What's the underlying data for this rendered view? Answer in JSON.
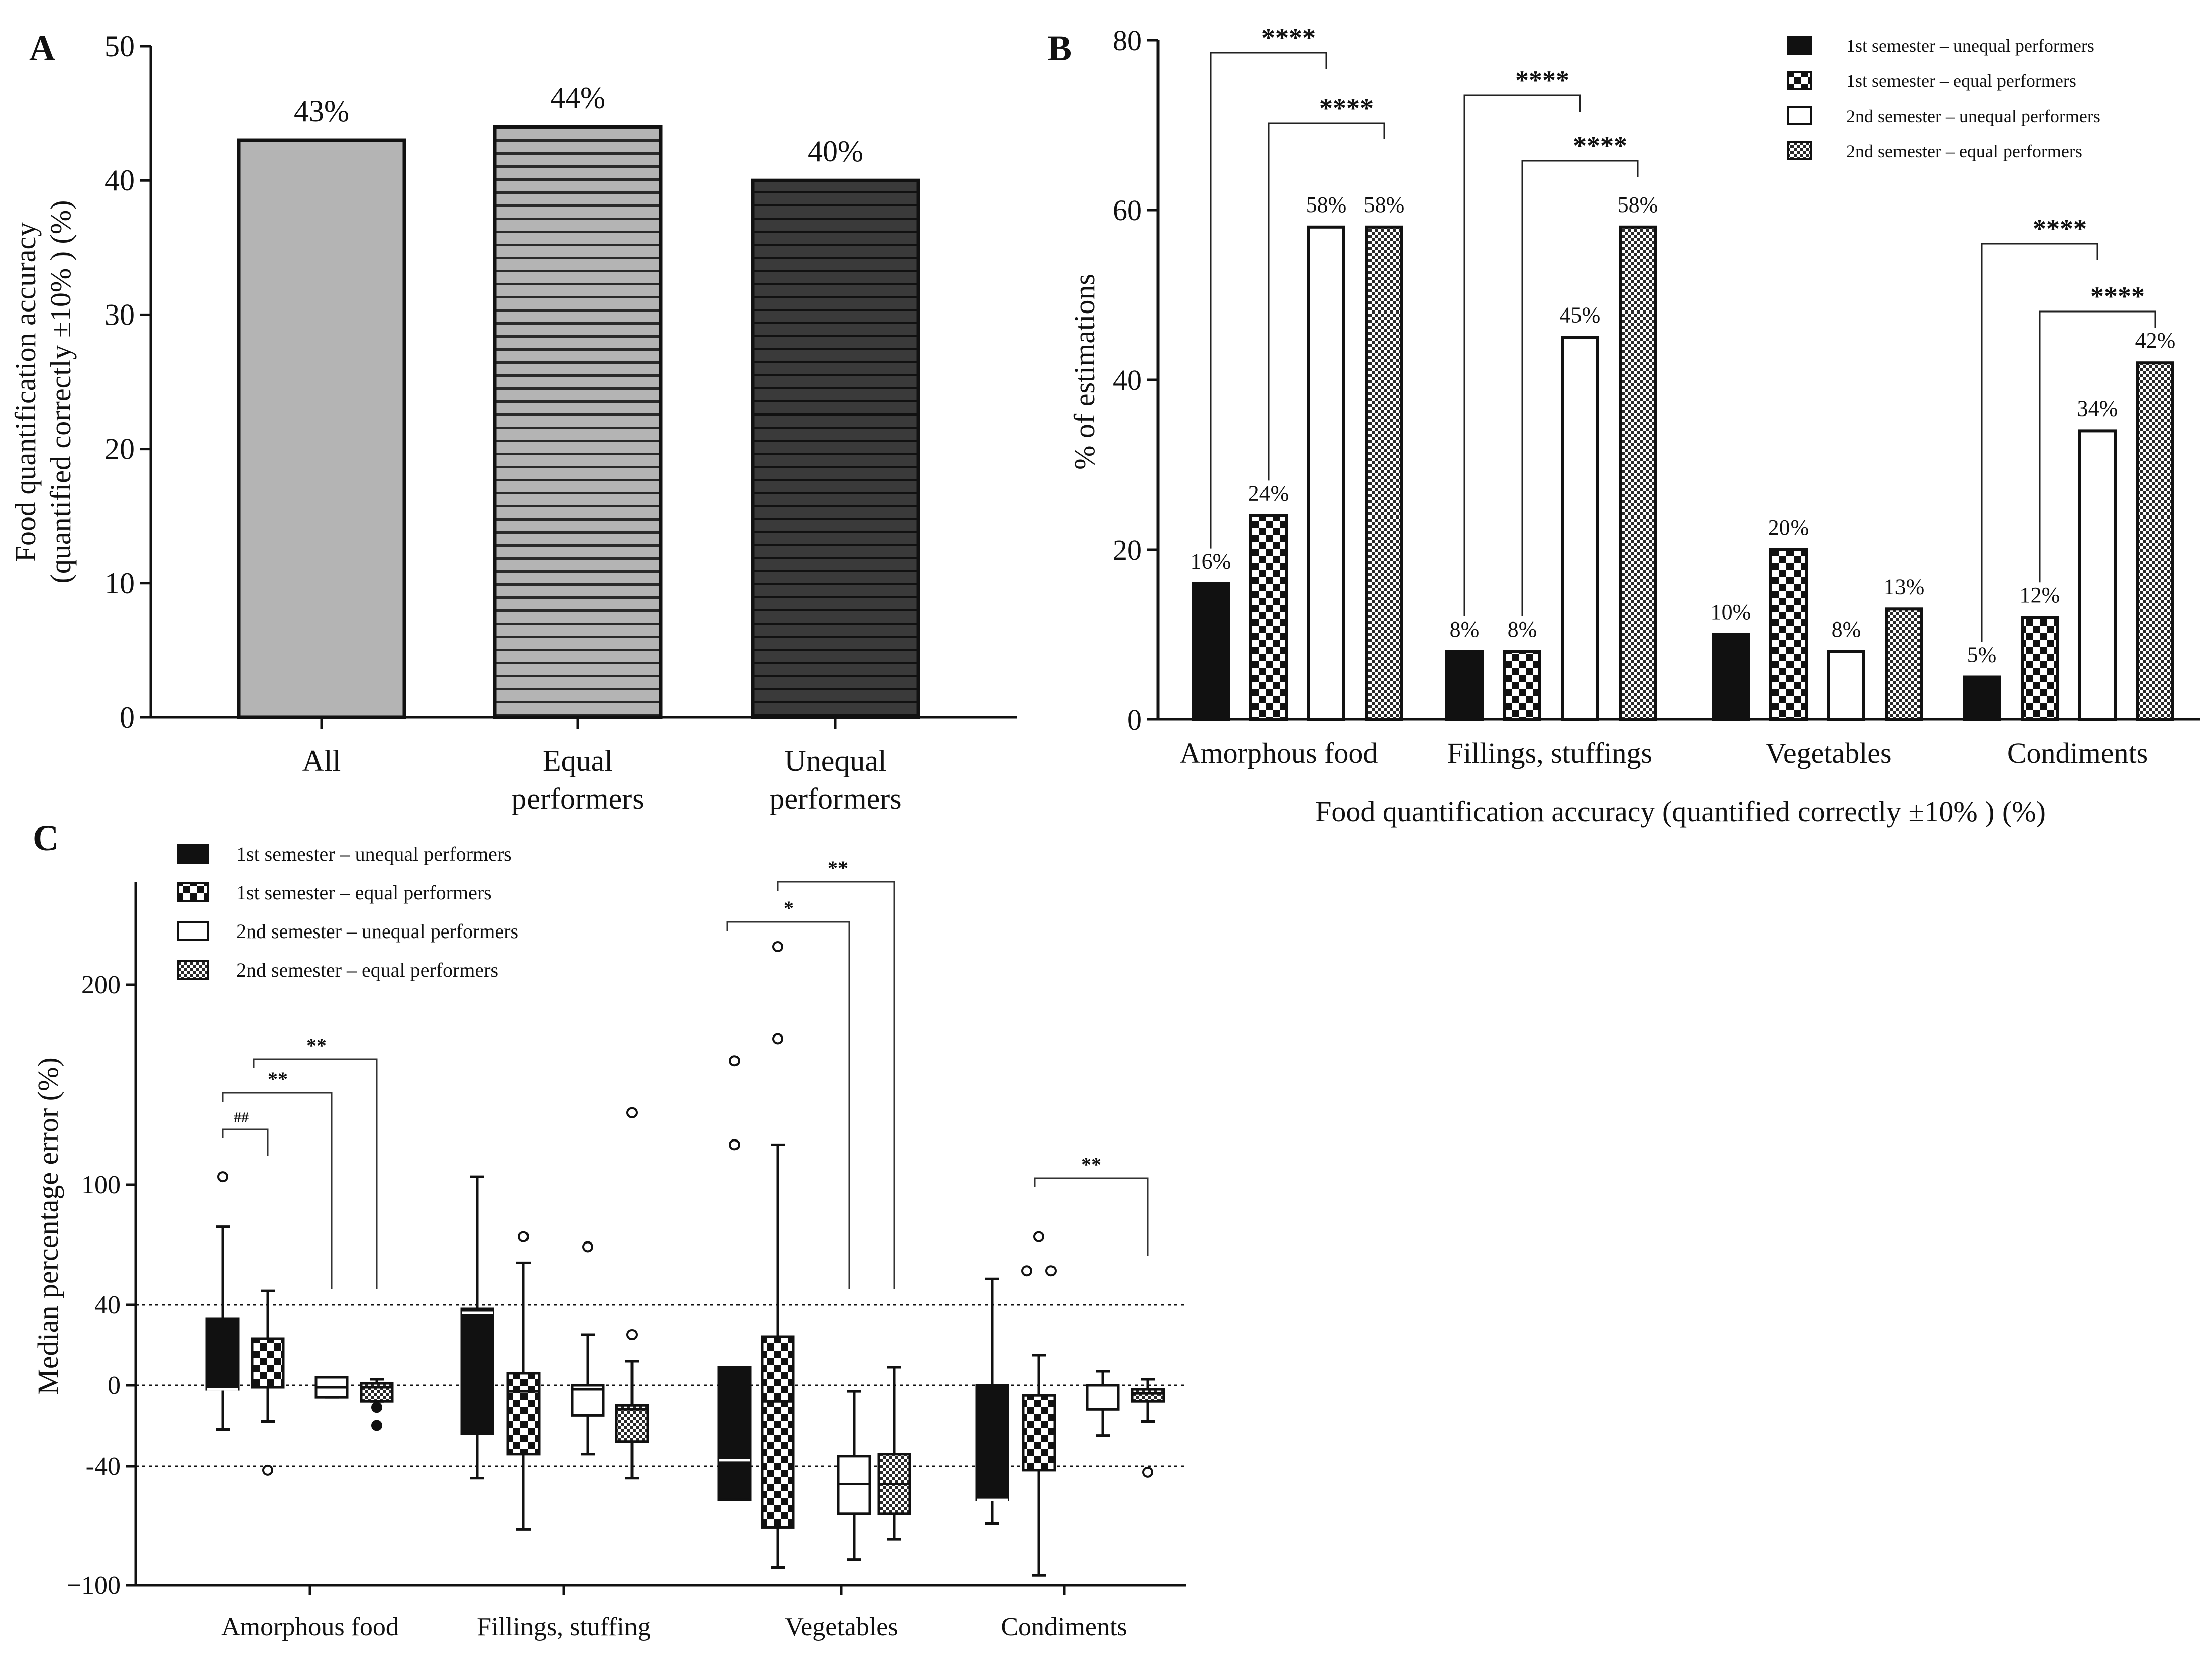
{
  "colors": {
    "ink": "#111111",
    "light_gray": "#b4b4b4",
    "dark_gray": "#3a3a3a",
    "white": "#ffffff"
  },
  "chart_data": [
    {
      "panel": "A",
      "type": "bar",
      "ylabel_line1": "Food quantification accuracy",
      "ylabel_line2": "(quantified correctly ±10% ) (%)",
      "ylim": [
        0,
        50
      ],
      "yticks": [
        0,
        10,
        20,
        30,
        40,
        50
      ],
      "categories": [
        "All",
        "Equal performers",
        "Unequal performers"
      ],
      "category_lines": [
        [
          "All"
        ],
        [
          "Equal",
          "performers"
        ],
        [
          "Unequal",
          "performers"
        ]
      ],
      "values": [
        43,
        44,
        40
      ],
      "labels": [
        "43%",
        "44%",
        "40%"
      ]
    },
    {
      "panel": "B",
      "type": "bar",
      "ylabel": "% of estimations",
      "xlabel": "Food quantification accuracy (quantified correctly ±10% ) (%)",
      "ylim": [
        0,
        80
      ],
      "yticks": [
        0,
        20,
        40,
        60,
        80
      ],
      "categories": [
        "Amorphous food",
        "Fillings, stuffings",
        "Vegetables",
        "Condiments"
      ],
      "series": [
        {
          "name": "1st semester – unequal performers",
          "values": [
            16,
            8,
            10,
            5
          ],
          "labels": [
            "16%",
            "8%",
            "10%",
            "5%"
          ]
        },
        {
          "name": "1st semester – equal performers",
          "values": [
            24,
            8,
            20,
            12
          ],
          "labels": [
            "24%",
            "8%",
            "20%",
            "12%"
          ]
        },
        {
          "name": "2nd semester – unequal performers",
          "values": [
            58,
            45,
            8,
            34
          ],
          "labels": [
            "58%",
            "45%",
            "8%",
            "34%"
          ]
        },
        {
          "name": "2nd semester – equal performers",
          "values": [
            58,
            58,
            13,
            42
          ],
          "labels": [
            "58%",
            "58%",
            "13%",
            "42%"
          ]
        }
      ],
      "significance": [
        {
          "category": "Amorphous food",
          "from_series": 0,
          "to_series": 2,
          "label": "****"
        },
        {
          "category": "Amorphous food",
          "from_series": 1,
          "to_series": 3,
          "label": "****"
        },
        {
          "category": "Fillings, stuffings",
          "from_series": 0,
          "to_series": 2,
          "label": "****"
        },
        {
          "category": "Fillings, stuffings",
          "from_series": 1,
          "to_series": 3,
          "label": "****"
        },
        {
          "category": "Condiments",
          "from_series": 0,
          "to_series": 2,
          "label": "****"
        },
        {
          "category": "Condiments",
          "from_series": 1,
          "to_series": 3,
          "label": "****"
        }
      ]
    },
    {
      "panel": "C",
      "type": "box",
      "ylabel": "Median percentage error (%)",
      "ytick_labels": [
        "200",
        "100",
        "40",
        "0",
        "-40",
        "−100"
      ],
      "reference_lines": [
        40,
        0,
        -40
      ],
      "categories": [
        "Amorphous food",
        "Fillings, stuffing",
        "Vegetables",
        "Condiments"
      ],
      "series_names": [
        "1st semester – unequal performers",
        "1st semester – equal performers",
        "2nd semester – unequal performers",
        "2nd semester – equal performers"
      ],
      "boxes": [
        {
          "category": "Amorphous food",
          "series": 0,
          "whisker_low": -22,
          "q1": -2,
          "median": -2,
          "q3": 33,
          "whisker_high": 79,
          "outliers": [
            104
          ]
        },
        {
          "category": "Amorphous food",
          "series": 1,
          "whisker_low": -18,
          "q1": -1,
          "median": -1,
          "q3": 23,
          "whisker_high": 47,
          "outliers": [
            -42
          ]
        },
        {
          "category": "Amorphous food",
          "series": 2,
          "whisker_low": -6,
          "q1": -6,
          "median": -1,
          "q3": 4,
          "whisker_high": 4,
          "outliers": []
        },
        {
          "category": "Amorphous food",
          "series": 3,
          "whisker_low": -8,
          "q1": -8,
          "median": -1,
          "q3": 1,
          "whisker_high": 3,
          "outliers": [
            -11,
            -20
          ]
        },
        {
          "category": "Fillings, stuffing",
          "series": 0,
          "whisker_low": -46,
          "q1": -24,
          "median": 36,
          "q3": 38,
          "whisker_high": 104,
          "outliers": []
        },
        {
          "category": "Fillings, stuffing",
          "series": 1,
          "whisker_low": -72,
          "q1": -34,
          "median": -3,
          "q3": 6,
          "whisker_high": 61,
          "outliers": [
            74
          ]
        },
        {
          "category": "Fillings, stuffing",
          "series": 2,
          "whisker_low": -34,
          "q1": -15,
          "median": -2,
          "q3": 0,
          "whisker_high": 25,
          "outliers": [
            69
          ]
        },
        {
          "category": "Fillings, stuffing",
          "series": 3,
          "whisker_low": -46,
          "q1": -28,
          "median": -12,
          "q3": -10,
          "whisker_high": 12,
          "outliers": [
            25,
            136
          ]
        },
        {
          "category": "Vegetables",
          "series": 0,
          "whisker_low": -57,
          "q1": -57,
          "median": -37,
          "q3": 9,
          "whisker_high": 9,
          "outliers": [
            120,
            162
          ]
        },
        {
          "category": "Vegetables",
          "series": 1,
          "whisker_low": -91,
          "q1": -71,
          "median": -8,
          "q3": 24,
          "whisker_high": 120,
          "outliers": [
            173,
            219
          ]
        },
        {
          "category": "Vegetables",
          "series": 2,
          "whisker_low": -87,
          "q1": -64,
          "median": -49,
          "q3": -35,
          "whisker_high": -3,
          "outliers": []
        },
        {
          "category": "Vegetables",
          "series": 3,
          "whisker_low": -77,
          "q1": -64,
          "median": -49,
          "q3": -34,
          "whisker_high": 9,
          "outliers": []
        },
        {
          "category": "Condiments",
          "series": 0,
          "whisker_low": -69,
          "q1": -57,
          "median": -57,
          "q3": 0,
          "whisker_high": 53,
          "outliers": []
        },
        {
          "category": "Condiments",
          "series": 1,
          "whisker_low": -95,
          "q1": -42,
          "median": -5,
          "q3": -5,
          "whisker_high": 15,
          "outliers": [
            57,
            57,
            74
          ]
        },
        {
          "category": "Condiments",
          "series": 2,
          "whisker_low": -25,
          "q1": -12,
          "median": 0,
          "q3": 0,
          "whisker_high": 7,
          "outliers": []
        },
        {
          "category": "Condiments",
          "series": 3,
          "whisker_low": -18,
          "q1": -8,
          "median": -4,
          "q3": -2,
          "whisker_high": 3,
          "outliers": [
            -43
          ]
        }
      ],
      "significance": [
        {
          "category": "Amorphous food",
          "from_series": 0,
          "to_series": 1,
          "label": "##"
        },
        {
          "category": "Amorphous food",
          "from_series": 0,
          "to_series": 2,
          "label": "**"
        },
        {
          "category": "Amorphous food",
          "from_series": 1,
          "to_series": 3,
          "label": "**"
        },
        {
          "category": "Vegetables",
          "from_series": 0,
          "to_series": 2,
          "label": "*"
        },
        {
          "category": "Vegetables",
          "from_series": 1,
          "to_series": 3,
          "label": "**"
        },
        {
          "category": "Condiments",
          "from_series": 1,
          "to_series": 3,
          "label": "**"
        }
      ]
    }
  ],
  "panel_letters": [
    "A",
    "B",
    "C"
  ],
  "legend": [
    "1st semester – unequal performers",
    "1st semester – equal performers",
    "2nd semester – unequal performers",
    "2nd semester – equal performers"
  ]
}
